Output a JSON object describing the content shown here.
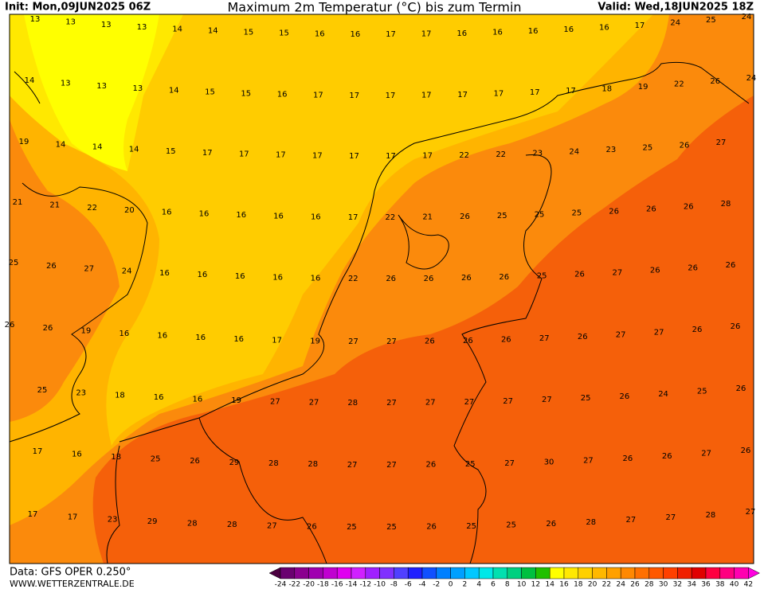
{
  "header": {
    "init": "Init: Mon,09JUN2025 06Z",
    "title": "Maximum 2m Temperatur (°C) bis zum Termin",
    "valid": "Valid: Wed,18JUN2025 18Z"
  },
  "footer": {
    "data": "Data: GFS OPER 0.250°",
    "url": "WWW.WETTERZENTRALE.DE"
  },
  "grid": [
    [
      13,
      13,
      13,
      13,
      14,
      14,
      15,
      15,
      16,
      16,
      17,
      17,
      16,
      16,
      16,
      16,
      16,
      17,
      24,
      25,
      24
    ],
    [
      14,
      13,
      13,
      13,
      14,
      15,
      15,
      16,
      17,
      17,
      17,
      17,
      17,
      17,
      17,
      17,
      18,
      19,
      22,
      26,
      24
    ],
    [
      19,
      14,
      14,
      14,
      15,
      17,
      17,
      17,
      17,
      17,
      17,
      17,
      22,
      22,
      23,
      24,
      23,
      25,
      26,
      27
    ],
    [
      21,
      21,
      22,
      20,
      16,
      16,
      16,
      16,
      16,
      17,
      22,
      21,
      26,
      25,
      25,
      25,
      26,
      26,
      26,
      28
    ],
    [
      25,
      26,
      27,
      24,
      16,
      16,
      16,
      16,
      16,
      22,
      26,
      26,
      26,
      26,
      25,
      26,
      27,
      26,
      26,
      26
    ],
    [
      26,
      26,
      19,
      16,
      16,
      16,
      16,
      17,
      19,
      27,
      27,
      26,
      26,
      26,
      27,
      26,
      27,
      27,
      26,
      26
    ],
    [
      25,
      23,
      18,
      16,
      16,
      19,
      27,
      27,
      28,
      27,
      27,
      27,
      27,
      27,
      25,
      26,
      24,
      25,
      26
    ],
    [
      17,
      16,
      18,
      25,
      26,
      29,
      28,
      28,
      27,
      27,
      26,
      25,
      27,
      30,
      27,
      26,
      26,
      27,
      26
    ],
    [
      17,
      17,
      23,
      29,
      28,
      28,
      27,
      26,
      25,
      25,
      26,
      25,
      25,
      26,
      28,
      27,
      27,
      28,
      27
    ]
  ],
  "colorbar": {
    "ticks": [
      -24,
      -22,
      -20,
      -18,
      -16,
      -14,
      -12,
      -10,
      -8,
      -6,
      -4,
      -2,
      0,
      2,
      4,
      6,
      8,
      10,
      12,
      14,
      16,
      18,
      20,
      22,
      24,
      26,
      28,
      30,
      32,
      34,
      36,
      38,
      40,
      42
    ],
    "colors": [
      "#4b0040",
      "#6a0070",
      "#8a008f",
      "#a000b0",
      "#c000d0",
      "#e000f0",
      "#d020ff",
      "#a020ff",
      "#8030ff",
      "#5040ff",
      "#2020ff",
      "#1050ff",
      "#0080ff",
      "#00a0ff",
      "#00c8ff",
      "#00e8e8",
      "#00e0b0",
      "#00d080",
      "#00c040",
      "#20c000",
      "#ffff00",
      "#ffe800",
      "#ffd000",
      "#ffb800",
      "#ffa000",
      "#ff8800",
      "#ff7000",
      "#ff5800",
      "#ff4000",
      "#f02000",
      "#e00000",
      "#ff0040",
      "#ff0080",
      "#ff00b0",
      "#ff00e0"
    ]
  }
}
